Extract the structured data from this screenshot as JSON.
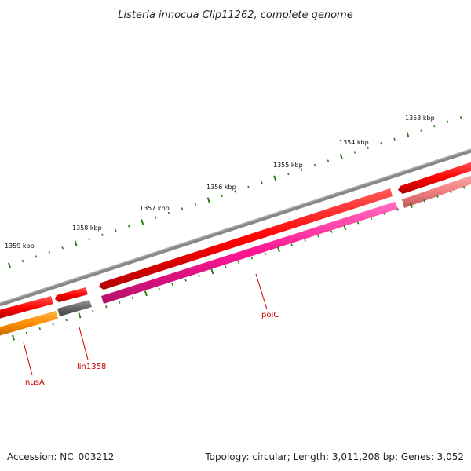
{
  "title": "Listeria innocua Clip11262, complete genome",
  "footer": {
    "accession": "Accession: NC_003212",
    "summary": "Topology: circular; Length: 3,011,208 bp; Genes: 3,052"
  },
  "ticks": {
    "labels": [
      "1353 kbp",
      "1354 kbp",
      "1355 kbp",
      "1356 kbp",
      "1357 kbp",
      "1358 kbp",
      "1359 kbp"
    ],
    "color": "#2a7a1a"
  },
  "genes": [
    {
      "name": "polC",
      "color": "#ff1493"
    },
    {
      "name": "lin1358",
      "color": "#666666"
    },
    {
      "name": "nusA",
      "color": "#ff8c00"
    }
  ],
  "colors": {
    "backbone": "#808080",
    "forward_cds": "#ff0000",
    "forward_cds_light": "#f08080",
    "label": "#cc0000"
  }
}
